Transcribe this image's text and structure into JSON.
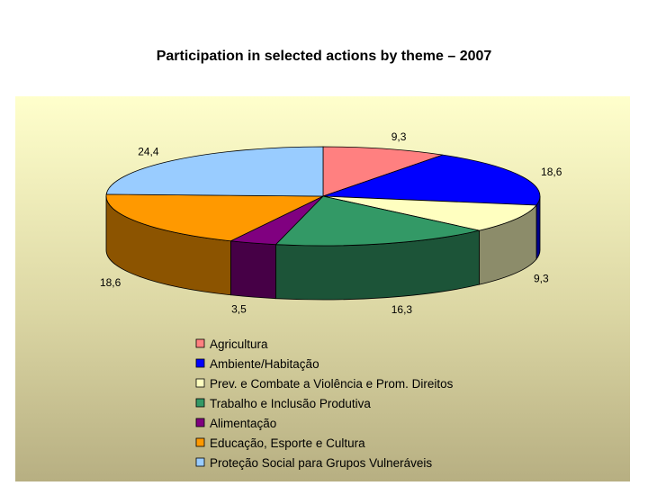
{
  "title": "Participation in selected actions by theme – 2007",
  "chart_data": {
    "type": "pie",
    "title": "Participation in selected actions by theme – 2007",
    "style": "3d",
    "legend_position": "bottom",
    "background": "gradient-yellow",
    "slices": [
      {
        "label": "Agricultura",
        "value": 9.3,
        "display": "9,3",
        "color": "#FF8080"
      },
      {
        "label": "Ambiente/Habitação",
        "value": 18.6,
        "display": "18,6",
        "color": "#0000FF"
      },
      {
        "label": "Prev. e Combate a Violência e Prom. Direitos",
        "value": 9.3,
        "display": "9,3",
        "color": "#FFFFC0"
      },
      {
        "label": "Trabalho e Inclusão Produtiva",
        "value": 16.3,
        "display": "16,3",
        "color": "#339966"
      },
      {
        "label": "Alimentação",
        "value": 3.5,
        "display": "3,5",
        "color": "#800080"
      },
      {
        "label": "Educação, Esporte e Cultura",
        "value": 18.6,
        "display": "18,6",
        "color": "#FF9900"
      },
      {
        "label": "Proteção Social para Grupos Vulneráveis",
        "value": 24.4,
        "display": "24,4",
        "color": "#99CCFF"
      }
    ]
  }
}
